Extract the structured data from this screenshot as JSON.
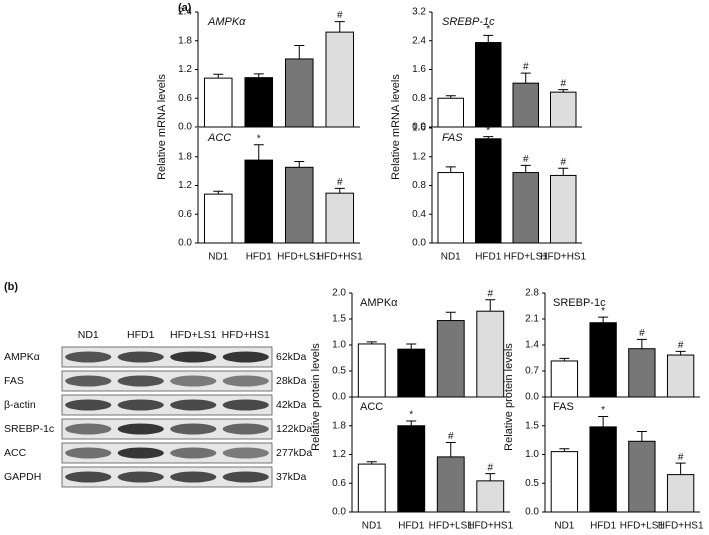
{
  "panels": [
    "(a)",
    "(b)"
  ],
  "blot": {
    "lanes": [
      "ND1",
      "HFD1",
      "HFD+LS1",
      "HFD+HS1"
    ],
    "rows": [
      {
        "protein": "AMPKα",
        "size": "62kDa"
      },
      {
        "protein": "FAS",
        "size": "28kDa"
      },
      {
        "protein": "β-actin",
        "size": "42kDa"
      },
      {
        "protein": "SREBP-1c",
        "size": "122kDa"
      },
      {
        "protein": "ACC",
        "size": "277kDa"
      },
      {
        "protein": "GAPDH",
        "size": "37kDa"
      }
    ]
  },
  "chart_data": [
    {
      "type": "bar",
      "title": "AMPKα",
      "ylabel": "Relative mRNA levels",
      "values": [
        1.02,
        1.03,
        1.42,
        1.98
      ],
      "errors": [
        0.08,
        0.08,
        0.28,
        0.22
      ],
      "markers": [
        null,
        null,
        null,
        "#"
      ],
      "colors": [
        "#ffffff",
        "#000000",
        "#777777",
        "#dddddd"
      ],
      "ylim": [
        0,
        2.4
      ],
      "yticks": [
        {
          "value": 0,
          "label": "0.0"
        },
        0.6,
        1.2,
        1.8,
        2.4
      ]
    },
    {
      "type": "bar",
      "title": "SREBP-1c",
      "ylabel": "Relative mRNA levels",
      "values": [
        0.8,
        2.35,
        1.22,
        0.97
      ],
      "errors": [
        0.07,
        0.2,
        0.28,
        0.07
      ],
      "markers": [
        null,
        "*",
        "#",
        "#"
      ],
      "colors": [
        "#ffffff",
        "#000000",
        "#777777",
        "#dddddd"
      ],
      "ylim": [
        0,
        3.2
      ],
      "yticks": [
        {
          "value": 0,
          "label": "0.0"
        },
        0.8,
        1.6,
        2.4,
        3.2
      ]
    },
    {
      "type": "bar",
      "title": "ACC",
      "categories": [
        "ND1",
        "HFD1",
        "HFD+LS1",
        "HFD+HS1"
      ],
      "values": [
        1.02,
        1.73,
        1.58,
        1.04
      ],
      "errors": [
        0.06,
        0.32,
        0.12,
        0.1
      ],
      "markers": [
        null,
        "*",
        null,
        "#"
      ],
      "colors": [
        "#ffffff",
        "#000000",
        "#777777",
        "#dddddd"
      ],
      "ylim": [
        0,
        2.4
      ],
      "yticks": [
        {
          "value": 0,
          "label": "0.0"
        },
        0.6,
        1.2,
        1.8
      ]
    },
    {
      "type": "bar",
      "title": "FAS",
      "categories": [
        "ND1",
        "HFD1",
        "HFD+LS1",
        "HFD+HS1"
      ],
      "values": [
        0.98,
        1.45,
        0.98,
        0.94
      ],
      "errors": [
        0.08,
        0.03,
        0.1,
        0.1
      ],
      "markers": [
        null,
        "*",
        "#",
        "#"
      ],
      "colors": [
        "#ffffff",
        "#000000",
        "#777777",
        "#dddddd"
      ],
      "ylim": [
        0,
        1.6
      ],
      "yticks": [
        {
          "value": 0,
          "label": "0.0"
        },
        0.4,
        0.8,
        1.2,
        1.6
      ]
    },
    {
      "type": "bar",
      "title": "AMPKα",
      "ylabel": "Relative protein levels",
      "values": [
        1.02,
        0.92,
        1.47,
        1.65
      ],
      "errors": [
        0.04,
        0.1,
        0.16,
        0.22
      ],
      "markers": [
        null,
        null,
        null,
        "#"
      ],
      "colors": [
        "#ffffff",
        "#000000",
        "#777777",
        "#dddddd"
      ],
      "ylim": [
        0,
        2
      ],
      "yticks": [
        {
          "value": 0,
          "label": "0.0"
        },
        0.5,
        {
          "value": 1,
          "label": "1.0"
        },
        1.5,
        {
          "value": 2,
          "label": "2.0"
        }
      ]
    },
    {
      "type": "bar",
      "title": "SREBP-1c",
      "ylabel": "Relative protein levels",
      "values": [
        0.97,
        2.0,
        1.3,
        1.13
      ],
      "errors": [
        0.07,
        0.15,
        0.25,
        0.1
      ],
      "markers": [
        null,
        "*",
        "#",
        "#"
      ],
      "colors": [
        "#ffffff",
        "#000000",
        "#777777",
        "#dddddd"
      ],
      "ylim": [
        0,
        2.8
      ],
      "yticks": [
        {
          "value": 0,
          "label": "0.0"
        },
        0.7,
        1.4,
        2.1,
        2.8
      ]
    },
    {
      "type": "bar",
      "title": "ACC",
      "categories": [
        "ND1",
        "HFD1",
        "HFD+LS1",
        "HFD+HS1"
      ],
      "values": [
        1.0,
        1.8,
        1.15,
        0.65
      ],
      "errors": [
        0.05,
        0.1,
        0.3,
        0.15
      ],
      "markers": [
        null,
        "*",
        "#",
        "#"
      ],
      "colors": [
        "#ffffff",
        "#000000",
        "#777777",
        "#dddddd"
      ],
      "ylim": [
        0,
        2.4
      ],
      "yticks": [
        {
          "value": 0,
          "label": "0.0"
        },
        0.6,
        1.2,
        1.8
      ]
    },
    {
      "type": "bar",
      "title": "FAS",
      "categories": [
        "ND1",
        "HFD1",
        "HFD+LS1",
        "HFD+HS1"
      ],
      "values": [
        1.05,
        1.48,
        1.23,
        0.65
      ],
      "errors": [
        0.05,
        0.18,
        0.17,
        0.2
      ],
      "markers": [
        null,
        "*",
        null,
        "#"
      ],
      "colors": [
        "#ffffff",
        "#000000",
        "#777777",
        "#dddddd"
      ],
      "ylim": [
        0,
        2
      ],
      "yticks": [
        {
          "value": 0,
          "label": "0.0"
        },
        0.5,
        {
          "value": 1,
          "label": "1.0"
        },
        1.5
      ]
    }
  ]
}
